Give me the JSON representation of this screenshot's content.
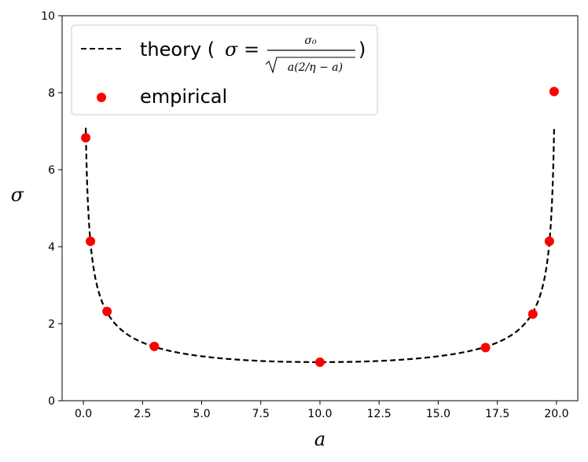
{
  "chart_data": {
    "type": "scatter",
    "xlabel": "a",
    "ylabel": "σ",
    "xlim": [
      -0.9,
      20.9
    ],
    "ylim": [
      0,
      10
    ],
    "x_ticks": [
      0,
      2.5,
      5,
      7.5,
      10,
      12.5,
      15,
      17.5,
      20
    ],
    "x_tick_labels": [
      "0.0",
      "2.5",
      "5.0",
      "7.5",
      "10.0",
      "12.5",
      "15.0",
      "17.5",
      "20.0"
    ],
    "y_ticks": [
      0,
      2,
      4,
      6,
      8,
      10
    ],
    "y_tick_labels": [
      "0",
      "2",
      "4",
      "6",
      "8",
      "10"
    ],
    "grid": false,
    "legend_position": "top-left",
    "theory": {
      "sigma0": 10,
      "eta": 0.1,
      "x_range": [
        0.1,
        19.9
      ],
      "color": "#000000",
      "style": "dashed"
    },
    "series": [
      {
        "name": "theory",
        "kind": "line",
        "legend_label_prefix": "theory (",
        "legend_label_suffix": ")",
        "legend_formula_lhs": "σ =",
        "legend_formula_numerator": "σ₀",
        "legend_formula_denominator": "a(2/η − a)",
        "color": "#000000"
      },
      {
        "name": "empirical",
        "kind": "scatter",
        "color": "#ff0000",
        "x": [
          0.1,
          0.3,
          1,
          3,
          10,
          17,
          19,
          19.7,
          19.9
        ],
        "y": [
          6.83,
          4.14,
          2.32,
          1.41,
          1.0,
          1.38,
          2.25,
          4.14,
          8.03
        ]
      }
    ]
  }
}
